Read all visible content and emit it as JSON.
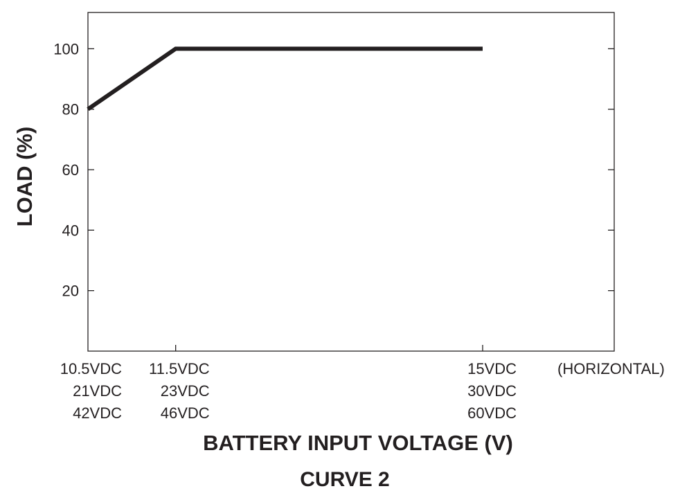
{
  "chart_data": {
    "type": "line",
    "title": "CURVE 2",
    "xlabel": "BATTERY INPUT VOLTAGE (V)",
    "ylabel": "LOAD (%)",
    "xlim": [
      10.5,
      16.5
    ],
    "ylim": [
      0,
      112
    ],
    "y_ticks": [
      20,
      40,
      60,
      80,
      100
    ],
    "x_ticks": [
      {
        "value": 10.5,
        "labels": [
          "10.5VDC",
          "21VDC",
          "42VDC"
        ]
      },
      {
        "value": 11.5,
        "labels": [
          "11.5VDC",
          "23VDC",
          "46VDC"
        ]
      },
      {
        "value": 15,
        "labels": [
          "15VDC",
          "30VDC",
          "60VDC"
        ]
      }
    ],
    "axis_note": "(HORIZONTAL)",
    "series": [
      {
        "x": [
          10.5,
          11.5,
          15
        ],
        "y": [
          80,
          100,
          100
        ]
      }
    ],
    "grid": false,
    "colors": {
      "line": "#231f20",
      "axes": "#231f20"
    }
  }
}
